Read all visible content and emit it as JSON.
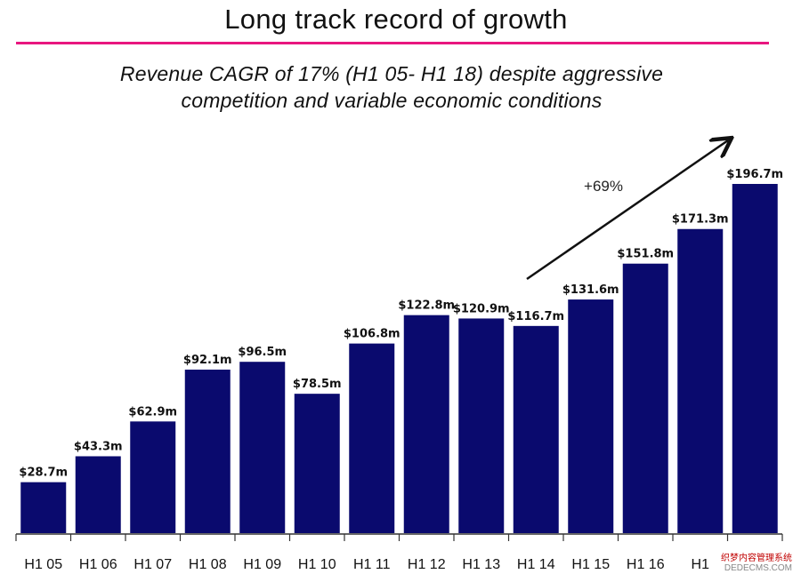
{
  "title": "Long track record of growth",
  "subtitle_lines": [
    "Revenue CAGR of 17% (H1 05- H1 18) despite aggressive",
    "competition and variable economic conditions"
  ],
  "colors": {
    "accent_rule": "#e8177f",
    "bar": "#0a0a6e"
  },
  "annotation": "+69%",
  "watermark": [
    "织梦内容管理系统",
    "DEDECMS.COM"
  ],
  "chart_data": {
    "type": "bar",
    "categories": [
      "H1 05",
      "H1 06",
      "H1 07",
      "H1 08",
      "H1 09",
      "H1 10",
      "H1 11",
      "H1 12",
      "H1 13",
      "H1 14",
      "H1 15",
      "H1 16",
      "H1",
      ""
    ],
    "values": [
      28.7,
      43.3,
      62.9,
      92.1,
      96.5,
      78.5,
      106.8,
      122.8,
      120.9,
      116.7,
      131.6,
      151.8,
      171.3,
      196.7
    ],
    "data_labels": [
      "$28.7m",
      "$43.3m",
      "$62.9m",
      "$92.1m",
      "$96.5m",
      "$78.5m",
      "$106.8m",
      "$122.8m",
      "$120.9m",
      "$116.7m",
      "$131.6m",
      "$151.8m",
      "$171.3m",
      "$196.7m"
    ],
    "title": "",
    "xlabel": "",
    "ylabel": "",
    "ylim": [
      0,
      200
    ],
    "grid": false,
    "legend": "none"
  }
}
